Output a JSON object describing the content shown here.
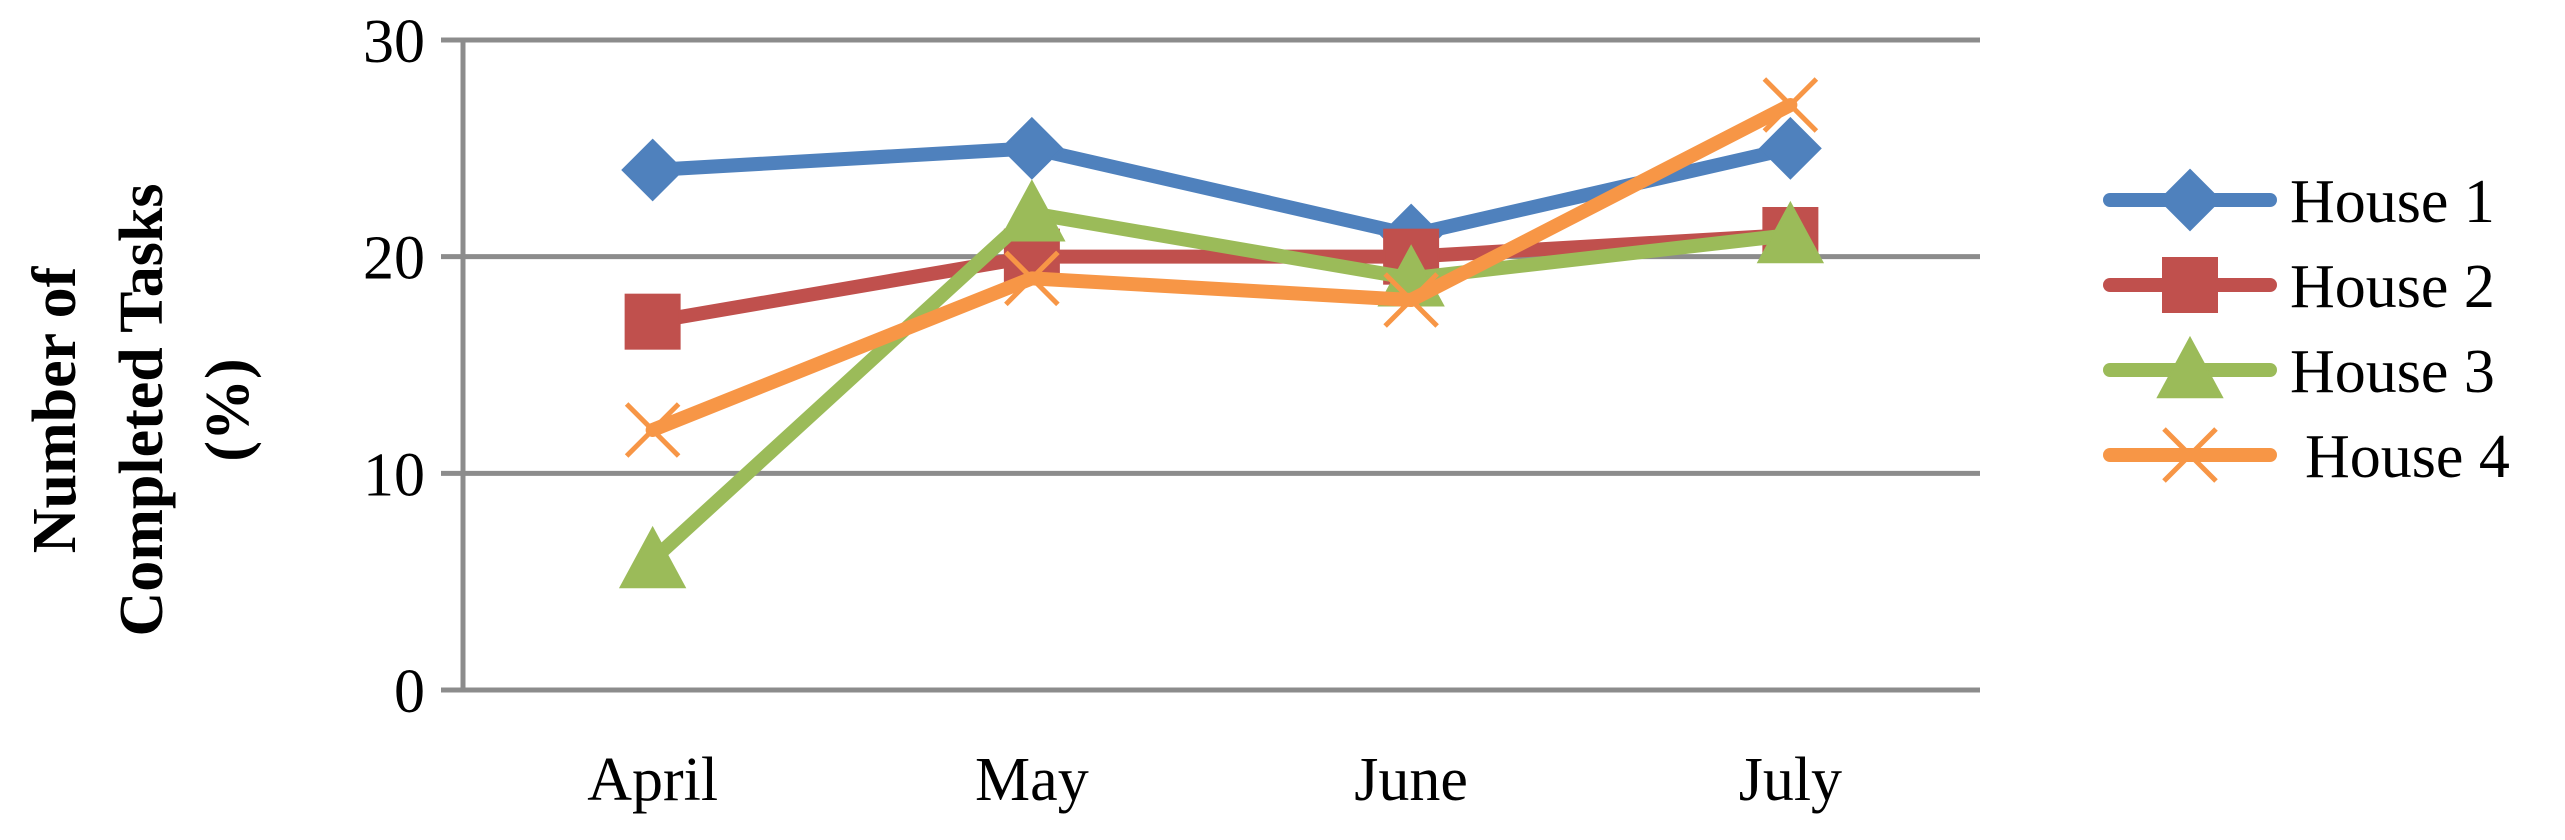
{
  "chart_data": {
    "type": "line",
    "title": "",
    "xlabel": "",
    "ylabel_lines": [
      "Number of",
      "Completed Tasks",
      "(%)"
    ],
    "categories": [
      "April",
      "May",
      "June",
      "July"
    ],
    "ylim": [
      0,
      30
    ],
    "yticks": [
      0,
      10,
      20,
      30
    ],
    "grid": true,
    "legend_position": "right",
    "series": [
      {
        "name": "House 1",
        "values": [
          24,
          25,
          21,
          25
        ],
        "color": "#4f81bd",
        "marker": "diamond"
      },
      {
        "name": "House 2",
        "values": [
          17,
          20,
          20,
          21
        ],
        "color": "#c0504d",
        "marker": "square"
      },
      {
        "name": "House 3",
        "values": [
          6,
          22,
          19,
          21
        ],
        "color": "#9bbb59",
        "marker": "triangle"
      },
      {
        "name": "House 4",
        "values": [
          12,
          19,
          18,
          27
        ],
        "color": "#f79646",
        "marker": "x"
      }
    ]
  }
}
